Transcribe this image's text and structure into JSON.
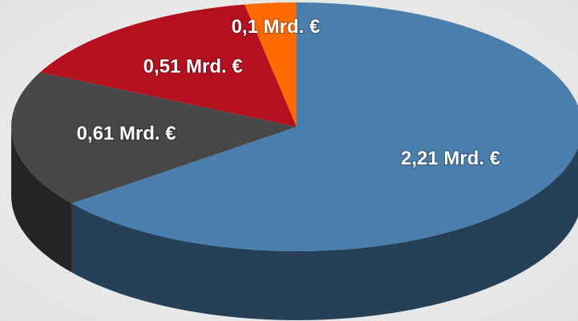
{
  "chart_data": {
    "type": "pie3d",
    "values": [
      2.21,
      0.61,
      0.51,
      0.1
    ],
    "value_labels": [
      "2,21 Mrd. €",
      "0,61 Mrd. €",
      "0,51 Mrd. €",
      "0,1 Mrd. €"
    ],
    "colors": [
      "#4a7fad",
      "#474747",
      "#b5101f",
      "#ff6a00"
    ]
  }
}
